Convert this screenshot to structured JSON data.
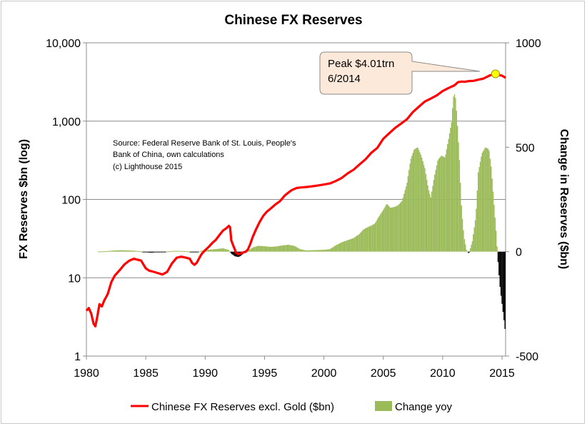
{
  "chart_data": {
    "type": "line+bar",
    "title": "Chinese FX Reserves",
    "y_left_label": "FX Reserves $bn (log)",
    "y_right_label": "Change in Reserves ($bn)",
    "y_left_scale": "log",
    "y_left_range": [
      1,
      10000
    ],
    "y_left_ticks": [
      "1",
      "10",
      "100",
      "1,000",
      "10,000"
    ],
    "y_right_range": [
      -500,
      1000
    ],
    "y_right_ticks": [
      "-500",
      "0",
      "500",
      "1000"
    ],
    "x_range": [
      1980,
      2015.3
    ],
    "x_ticks": [
      "1980",
      "1985",
      "1990",
      "1995",
      "2000",
      "2005",
      "2010",
      "2015"
    ],
    "grid": "horizontal",
    "legend_position": "bottom",
    "source_note": [
      "Source: Federal Reserve Bank of St. Louis, People's",
      "Bank of China, own calculations",
      "(c) Lighthouse 2015"
    ],
    "annotation": {
      "line1": "Peak $4.01trn",
      "line2": "6/2014",
      "point": {
        "x": 2014.45,
        "y": 4010
      }
    },
    "series": [
      {
        "name": "Chinese FX Reserves excl. Gold ($bn)",
        "kind": "line",
        "axis": "left",
        "color": "#ff0000",
        "points": [
          [
            1980.0,
            3.8
          ],
          [
            1980.2,
            4.1
          ],
          [
            1980.4,
            3.5
          ],
          [
            1980.6,
            2.6
          ],
          [
            1980.75,
            2.4
          ],
          [
            1980.9,
            3.1
          ],
          [
            1981.1,
            4.6
          ],
          [
            1981.3,
            4.3
          ],
          [
            1981.5,
            5.1
          ],
          [
            1981.8,
            6.2
          ],
          [
            1982.1,
            8.8
          ],
          [
            1982.4,
            10.7
          ],
          [
            1982.8,
            12.5
          ],
          [
            1983.2,
            14.8
          ],
          [
            1983.6,
            16.5
          ],
          [
            1984.0,
            17.5
          ],
          [
            1984.3,
            17.0
          ],
          [
            1984.6,
            16.6
          ],
          [
            1984.8,
            14.8
          ],
          [
            1985.0,
            13.2
          ],
          [
            1985.3,
            12.3
          ],
          [
            1985.6,
            12.0
          ],
          [
            1986.0,
            11.5
          ],
          [
            1986.4,
            11.0
          ],
          [
            1986.8,
            11.9
          ],
          [
            1987.2,
            15.2
          ],
          [
            1987.6,
            18.0
          ],
          [
            1988.0,
            18.6
          ],
          [
            1988.4,
            18.0
          ],
          [
            1988.7,
            17.5
          ],
          [
            1988.9,
            15.5
          ],
          [
            1989.1,
            14.6
          ],
          [
            1989.3,
            15.6
          ],
          [
            1989.5,
            17.8
          ],
          [
            1989.7,
            20.1
          ],
          [
            1990.0,
            22.5
          ],
          [
            1990.3,
            24.8
          ],
          [
            1990.6,
            27.8
          ],
          [
            1990.9,
            30.5
          ],
          [
            1991.2,
            35.0
          ],
          [
            1991.5,
            40.0
          ],
          [
            1991.8,
            43.0
          ],
          [
            1992.0,
            46.0
          ],
          [
            1992.1,
            44.0
          ],
          [
            1992.2,
            30.0
          ],
          [
            1992.4,
            25.0
          ],
          [
            1992.6,
            21.0
          ],
          [
            1992.8,
            20.0
          ],
          [
            1993.0,
            20.5
          ],
          [
            1993.2,
            21.0
          ],
          [
            1993.4,
            21.5
          ],
          [
            1993.6,
            23.0
          ],
          [
            1993.8,
            27.0
          ],
          [
            1994.0,
            33.0
          ],
          [
            1994.3,
            42.0
          ],
          [
            1994.6,
            52.0
          ],
          [
            1994.9,
            62.0
          ],
          [
            1995.2,
            70.0
          ],
          [
            1995.5,
            76.0
          ],
          [
            1995.9,
            86.0
          ],
          [
            1996.3,
            95.0
          ],
          [
            1996.7,
            112.0
          ],
          [
            1997.0,
            122.0
          ],
          [
            1997.3,
            132.0
          ],
          [
            1997.7,
            140.0
          ],
          [
            1998.0,
            142.0
          ],
          [
            1998.5,
            144.0
          ],
          [
            1999.0,
            147.0
          ],
          [
            1999.5,
            151.0
          ],
          [
            2000.0,
            155.0
          ],
          [
            2000.5,
            160.0
          ],
          [
            2001.0,
            172.0
          ],
          [
            2001.5,
            188.0
          ],
          [
            2002.0,
            215.0
          ],
          [
            2002.5,
            240.0
          ],
          [
            2003.0,
            280.0
          ],
          [
            2003.5,
            325.0
          ],
          [
            2004.0,
            395.0
          ],
          [
            2004.5,
            455.0
          ],
          [
            2005.0,
            595.0
          ],
          [
            2005.5,
            700.0
          ],
          [
            2006.0,
            820.0
          ],
          [
            2006.5,
            930.0
          ],
          [
            2007.0,
            1060.0
          ],
          [
            2007.5,
            1310.0
          ],
          [
            2008.0,
            1530.0
          ],
          [
            2008.5,
            1780.0
          ],
          [
            2009.0,
            1940.0
          ],
          [
            2009.5,
            2130.0
          ],
          [
            2010.0,
            2420.0
          ],
          [
            2010.5,
            2650.0
          ],
          [
            2011.0,
            2870.0
          ],
          [
            2011.3,
            3150.0
          ],
          [
            2011.6,
            3200.0
          ],
          [
            2011.9,
            3180.0
          ],
          [
            2012.2,
            3250.0
          ],
          [
            2012.6,
            3270.0
          ],
          [
            2013.0,
            3380.0
          ],
          [
            2013.4,
            3480.0
          ],
          [
            2013.7,
            3660.0
          ],
          [
            2014.0,
            3850.0
          ],
          [
            2014.45,
            4010.0
          ],
          [
            2014.7,
            3890.0
          ],
          [
            2015.0,
            3800.0
          ],
          [
            2015.2,
            3650.0
          ],
          [
            2015.3,
            3560.0
          ]
        ]
      },
      {
        "name": "Change yoy",
        "kind": "bar",
        "axis": "right",
        "color": "#9bbb59",
        "negative_color": "#000000",
        "points": [
          [
            1981.0,
            1
          ],
          [
            1981.5,
            1.5
          ],
          [
            1982.0,
            4
          ],
          [
            1982.5,
            6
          ],
          [
            1983.0,
            7
          ],
          [
            1983.5,
            6
          ],
          [
            1984.0,
            5
          ],
          [
            1984.5,
            2
          ],
          [
            1985.0,
            -3
          ],
          [
            1985.5,
            -5
          ],
          [
            1986.0,
            -2
          ],
          [
            1986.5,
            -1
          ],
          [
            1987.0,
            2
          ],
          [
            1987.5,
            4
          ],
          [
            1988.0,
            3
          ],
          [
            1988.5,
            2
          ],
          [
            1989.0,
            -3
          ],
          [
            1989.3,
            -2
          ],
          [
            1989.6,
            3
          ],
          [
            1990.0,
            8
          ],
          [
            1990.5,
            10
          ],
          [
            1991.0,
            13
          ],
          [
            1991.5,
            16
          ],
          [
            1992.0,
            8
          ],
          [
            1992.2,
            -10
          ],
          [
            1992.5,
            -22
          ],
          [
            1992.8,
            -26
          ],
          [
            1993.0,
            -20
          ],
          [
            1993.3,
            -6
          ],
          [
            1993.6,
            3
          ],
          [
            1994.0,
            20
          ],
          [
            1994.5,
            28
          ],
          [
            1995.0,
            26
          ],
          [
            1995.5,
            23
          ],
          [
            1996.0,
            25
          ],
          [
            1996.5,
            30
          ],
          [
            1997.0,
            33
          ],
          [
            1997.5,
            28
          ],
          [
            1998.0,
            12
          ],
          [
            1998.5,
            6
          ],
          [
            1999.0,
            7
          ],
          [
            1999.5,
            8
          ],
          [
            2000.0,
            9
          ],
          [
            2000.5,
            12
          ],
          [
            2001.0,
            30
          ],
          [
            2001.5,
            45
          ],
          [
            2002.0,
            55
          ],
          [
            2002.5,
            65
          ],
          [
            2003.0,
            85
          ],
          [
            2003.3,
            105
          ],
          [
            2003.6,
            115
          ],
          [
            2004.0,
            125
          ],
          [
            2004.3,
            135
          ],
          [
            2004.6,
            165
          ],
          [
            2005.0,
            200
          ],
          [
            2005.3,
            230
          ],
          [
            2005.6,
            210
          ],
          [
            2006.0,
            215
          ],
          [
            2006.3,
            225
          ],
          [
            2006.6,
            245
          ],
          [
            2007.0,
            330
          ],
          [
            2007.3,
            440
          ],
          [
            2007.6,
            490
          ],
          [
            2007.9,
            500
          ],
          [
            2008.2,
            460
          ],
          [
            2008.5,
            400
          ],
          [
            2008.8,
            300
          ],
          [
            2009.0,
            260
          ],
          [
            2009.3,
            360
          ],
          [
            2009.6,
            440
          ],
          [
            2009.9,
            460
          ],
          [
            2010.2,
            450
          ],
          [
            2010.5,
            540
          ],
          [
            2010.75,
            620
          ],
          [
            2010.9,
            740
          ],
          [
            2011.05,
            760
          ],
          [
            2011.2,
            650
          ],
          [
            2011.4,
            460
          ],
          [
            2011.6,
            200
          ],
          [
            2011.8,
            70
          ],
          [
            2012.0,
            10
          ],
          [
            2012.2,
            -10
          ],
          [
            2012.5,
            50
          ],
          [
            2012.8,
            170
          ],
          [
            2013.0,
            380
          ],
          [
            2013.3,
            470
          ],
          [
            2013.6,
            500
          ],
          [
            2013.9,
            490
          ],
          [
            2014.1,
            400
          ],
          [
            2014.3,
            250
          ],
          [
            2014.5,
            100
          ],
          [
            2014.7,
            -80
          ],
          [
            2014.85,
            -180
          ],
          [
            2015.0,
            -250
          ],
          [
            2015.15,
            -320
          ],
          [
            2015.25,
            -370
          ]
        ]
      }
    ]
  }
}
